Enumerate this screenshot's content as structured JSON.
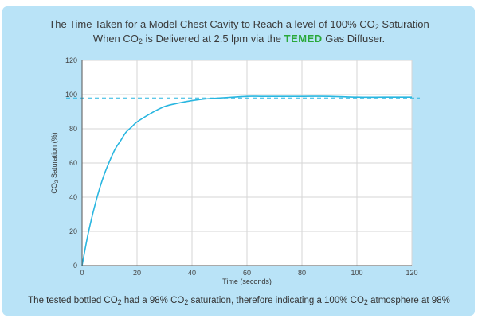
{
  "header": {
    "line1_pre": "The Time Taken for a Model Chest Cavity to Reach a level of 100% CO",
    "line1_sub": "2",
    "line1_post": " Saturation",
    "line2_pre": "When CO",
    "line2_sub": "2",
    "line2_mid": " is Delivered at 2.5 lpm via the ",
    "brand": "TEMED",
    "line2_post": " Gas Diffuser."
  },
  "footer": {
    "pre": "The tested bottled CO",
    "sub1": "2",
    "mid1": " had a 98% CO",
    "sub2": "2",
    "mid2": " saturation, therefore indicating a 100% CO",
    "sub3": "2",
    "post": " atmosphere at 98%"
  },
  "colors": {
    "line": "#29b6e0",
    "reference": "#29b6e0",
    "panel": "#b9e3f7",
    "brand": "#2aa83a"
  },
  "chart_data": {
    "type": "line",
    "title": "The Time Taken for a Model Chest Cavity to Reach a level of 100% CO2 Saturation When CO2 is Delivered at 2.5 lpm via the TEMED Gas Diffuser.",
    "xlabel": "Time (seconds)",
    "ylabel_pre": "CO",
    "ylabel_sub": "2",
    "ylabel_post": " Saturation (%)",
    "xlim": [
      0,
      120
    ],
    "ylim": [
      0,
      120
    ],
    "xticks": [
      0,
      20,
      40,
      60,
      80,
      100,
      120
    ],
    "yticks": [
      0,
      20,
      40,
      60,
      80,
      100,
      120
    ],
    "grid": true,
    "series": [
      {
        "name": "CO2 Saturation",
        "x": [
          0,
          2,
          4,
          6,
          8,
          10,
          12,
          14,
          16,
          18,
          20,
          25,
          30,
          35,
          40,
          45,
          50,
          55,
          60,
          65,
          70,
          80,
          90,
          100,
          110,
          120
        ],
        "y": [
          0,
          17,
          31,
          43,
          53,
          61,
          68,
          73,
          78,
          81,
          84,
          89,
          93,
          95,
          96.5,
          97.5,
          98,
          98.5,
          99,
          99,
          99,
          99,
          99,
          98.5,
          98.5,
          98.5
        ]
      }
    ],
    "reference_line": {
      "y": 98,
      "style": "dashed"
    }
  }
}
